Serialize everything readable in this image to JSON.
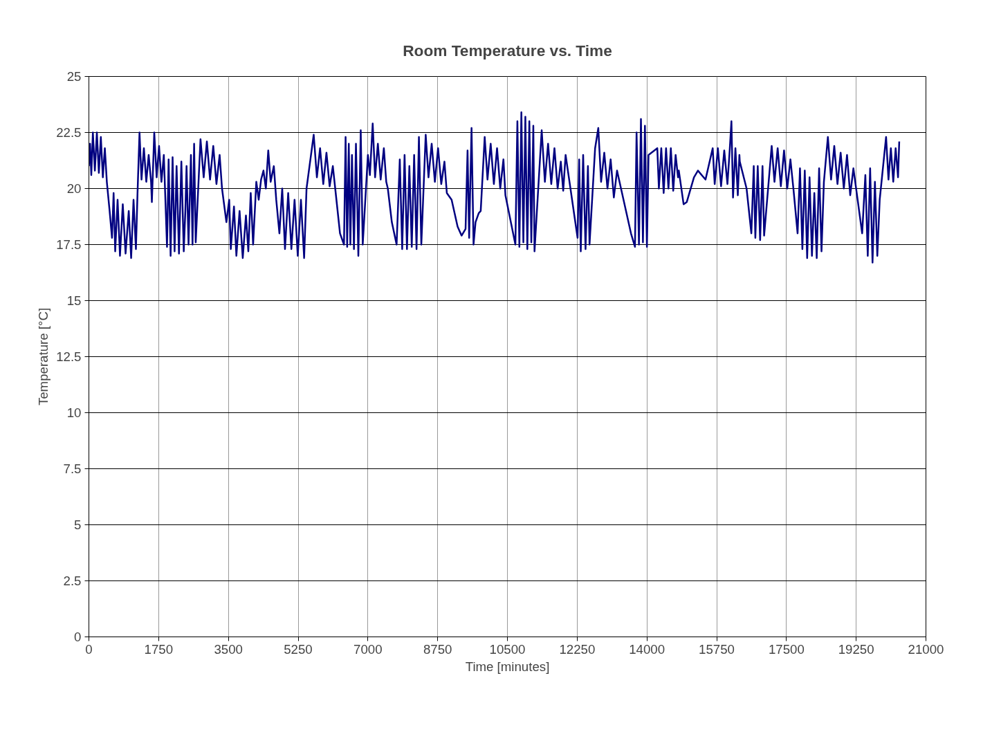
{
  "chart_data": {
    "type": "line",
    "title": "Room Temperature vs. Time",
    "xlabel": "Time [minutes]",
    "ylabel": "Temperature [°C]",
    "xlim": [
      0,
      21000
    ],
    "xticks": [
      0,
      1750,
      3500,
      5250,
      7000,
      8750,
      10500,
      12250,
      14000,
      15750,
      17500,
      19250,
      21000
    ],
    "ylim": [
      0,
      25
    ],
    "yticks": [
      0,
      2.5,
      5,
      7.5,
      10,
      12.5,
      15,
      17.5,
      20,
      22.5,
      25
    ],
    "grid": true,
    "marker": "none",
    "line_style": "solid",
    "series": [
      {
        "color": "#000080",
        "x": [
          0,
          30,
          60,
          100,
          150,
          200,
          250,
          300,
          350,
          400,
          450,
          520,
          580,
          620,
          660,
          720,
          780,
          850,
          920,
          1000,
          1060,
          1120,
          1180,
          1220,
          1270,
          1320,
          1380,
          1440,
          1500,
          1560,
          1580,
          1640,
          1700,
          1760,
          1820,
          1880,
          1960,
          2000,
          2050,
          2100,
          2150,
          2200,
          2260,
          2320,
          2380,
          2420,
          2450,
          2500,
          2560,
          2600,
          2640,
          2680,
          2800,
          2880,
          2960,
          3040,
          3120,
          3200,
          3280,
          3340,
          3450,
          3520,
          3560,
          3640,
          3700,
          3780,
          3860,
          3940,
          4000,
          4060,
          4120,
          4200,
          4260,
          4320,
          4380,
          4440,
          4500,
          4560,
          4640,
          4700,
          4780,
          4850,
          4920,
          5000,
          5080,
          5160,
          5240,
          5320,
          5400,
          5460,
          5640,
          5720,
          5800,
          5880,
          5960,
          6040,
          6120,
          6180,
          6300,
          6400,
          6440,
          6480,
          6520,
          6560,
          6600,
          6650,
          6700,
          6760,
          6820,
          6870,
          7000,
          7050,
          7120,
          7180,
          7250,
          7320,
          7400,
          7460,
          7500,
          7600,
          7720,
          7800,
          7860,
          7920,
          7980,
          8040,
          8100,
          8160,
          8220,
          8280,
          8340,
          8450,
          8520,
          8600,
          8680,
          8760,
          8840,
          8920,
          8980,
          9100,
          9250,
          9350,
          9450,
          9500,
          9540,
          9600,
          9650,
          9700,
          9780,
          9830,
          9930,
          10000,
          10080,
          10160,
          10240,
          10320,
          10400,
          10450,
          10700,
          10750,
          10800,
          10850,
          10900,
          10950,
          11000,
          11050,
          11100,
          11150,
          11180,
          11360,
          11440,
          11520,
          11600,
          11680,
          11760,
          11840,
          11900,
          11960,
          12260,
          12300,
          12340,
          12400,
          12460,
          12520,
          12560,
          12700,
          12780,
          12850,
          12930,
          13010,
          13090,
          13170,
          13250,
          13600,
          13700,
          13740,
          13800,
          13850,
          13900,
          13950,
          14000,
          14040,
          14260,
          14300,
          14360,
          14420,
          14480,
          14540,
          14600,
          14660,
          14720,
          14780,
          14800,
          14920,
          15000,
          15180,
          15280,
          15470,
          15650,
          15700,
          15780,
          15860,
          15940,
          16020,
          16080,
          16120,
          16160,
          16220,
          16280,
          16320,
          16330,
          16500,
          16620,
          16680,
          16720,
          16780,
          16840,
          16900,
          16940,
          17130,
          17200,
          17280,
          17360,
          17440,
          17520,
          17600,
          17680,
          17780,
          17840,
          17900,
          17960,
          18020,
          18080,
          18140,
          18200,
          18260,
          18320,
          18380,
          18440,
          18540,
          18620,
          18700,
          18780,
          18860,
          18940,
          19020,
          19100,
          19180,
          19400,
          19480,
          19540,
          19600,
          19660,
          19720,
          19780,
          19840,
          20000,
          20060,
          20120,
          20180,
          20240,
          20300,
          20330
        ],
        "values": [
          21.0,
          22.0,
          20.6,
          22.5,
          20.8,
          22.5,
          20.7,
          22.3,
          20.5,
          21.8,
          20.3,
          19.0,
          17.8,
          19.8,
          17.2,
          19.5,
          17.0,
          19.3,
          17.1,
          19.0,
          16.9,
          19.5,
          17.3,
          19.8,
          22.5,
          20.4,
          21.8,
          20.3,
          21.5,
          20.3,
          19.4,
          22.5,
          20.5,
          21.9,
          20.3,
          21.5,
          17.4,
          21.3,
          17.0,
          21.4,
          17.2,
          21.0,
          17.1,
          21.2,
          17.2,
          19.0,
          21.0,
          17.5,
          21.5,
          17.5,
          22.0,
          17.6,
          22.2,
          20.5,
          22.1,
          20.4,
          21.9,
          20.2,
          21.5,
          20.0,
          18.5,
          19.5,
          17.3,
          19.2,
          17.0,
          19.0,
          16.9,
          18.8,
          17.2,
          19.8,
          17.5,
          20.3,
          19.5,
          20.4,
          20.8,
          20.0,
          21.7,
          20.3,
          21.0,
          19.5,
          18.0,
          20.0,
          17.3,
          19.8,
          17.3,
          19.5,
          17.0,
          19.5,
          16.9,
          20.0,
          22.4,
          20.5,
          21.8,
          20.2,
          21.6,
          20.1,
          21.0,
          20.0,
          18.0,
          17.5,
          22.3,
          17.4,
          22.0,
          17.5,
          21.5,
          17.3,
          22.0,
          17.0,
          22.6,
          17.5,
          21.5,
          20.6,
          22.9,
          20.5,
          22.0,
          20.4,
          21.8,
          20.3,
          20.0,
          18.5,
          17.5,
          21.3,
          17.3,
          21.5,
          17.3,
          21.0,
          17.4,
          21.5,
          17.3,
          22.3,
          17.5,
          22.4,
          20.5,
          22.0,
          20.3,
          21.8,
          20.2,
          21.2,
          19.8,
          19.5,
          18.3,
          17.9,
          18.2,
          21.7,
          17.8,
          22.7,
          17.5,
          18.5,
          18.9,
          19.0,
          22.3,
          20.4,
          22.0,
          20.2,
          21.8,
          20.0,
          21.3,
          19.7,
          17.5,
          23.0,
          17.4,
          23.4,
          17.6,
          23.2,
          17.3,
          23.0,
          17.6,
          22.8,
          17.2,
          22.6,
          20.3,
          22.0,
          20.2,
          21.8,
          20.0,
          21.2,
          19.9,
          21.5,
          17.8,
          21.3,
          17.2,
          21.5,
          17.3,
          21.0,
          17.5,
          21.8,
          22.7,
          20.3,
          21.6,
          20.0,
          21.3,
          19.6,
          20.8,
          18.0,
          17.4,
          22.5,
          17.5,
          23.1,
          17.6,
          22.8,
          17.4,
          21.5,
          21.8,
          20.0,
          21.8,
          19.8,
          21.8,
          20.0,
          21.8,
          19.9,
          21.5,
          20.5,
          20.8,
          19.3,
          19.4,
          20.5,
          20.8,
          20.4,
          21.8,
          20.2,
          21.8,
          20.1,
          21.7,
          20.2,
          21.8,
          23.0,
          19.6,
          21.8,
          19.7,
          21.5,
          21.2,
          20.0,
          18.0,
          21.0,
          17.8,
          21.0,
          17.7,
          21.0,
          17.9,
          21.9,
          20.3,
          21.8,
          20.1,
          21.7,
          20.0,
          21.3,
          19.9,
          18.0,
          20.9,
          17.3,
          20.8,
          16.9,
          20.5,
          17.0,
          19.8,
          16.9,
          20.9,
          17.2,
          20.3,
          22.3,
          20.4,
          21.9,
          20.2,
          21.6,
          20.0,
          21.5,
          19.7,
          20.9,
          18.0,
          20.6,
          17.0,
          20.9,
          16.7,
          20.3,
          17.0,
          19.5,
          22.3,
          20.4,
          21.8,
          20.3,
          21.8,
          20.5,
          22.1
        ]
      }
    ]
  }
}
